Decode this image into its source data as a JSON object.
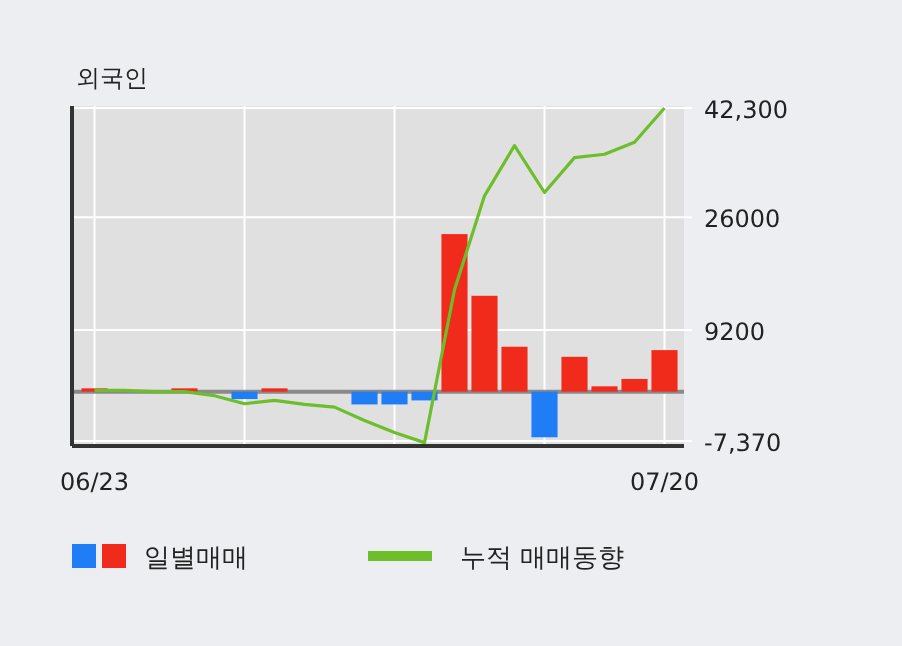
{
  "chart_data": {
    "type": "bar",
    "title": "외국인",
    "categories": [
      "06/23",
      null,
      null,
      null,
      null,
      null,
      null,
      null,
      null,
      null,
      null,
      null,
      null,
      null,
      null,
      null,
      null,
      null,
      null,
      "07/20"
    ],
    "series": [
      {
        "name": "일별매매",
        "colors": [
          "#f02b1b",
          null,
          null,
          "#f02b1b",
          null,
          "#1f7ef5",
          "#f02b1b",
          null,
          null,
          "#1f7ef5",
          "#1f7ef5",
          "#1f7ef5",
          "#f02b1b",
          "#f02b1b",
          "#f02b1b",
          "#1f7ef5",
          "#f02b1b",
          "#f02b1b",
          "#f02b1b",
          "#f02b1b"
        ],
        "values": [
          500,
          null,
          null,
          500,
          null,
          -1100,
          500,
          null,
          null,
          -1900,
          -1900,
          -1300,
          23500,
          14300,
          6700,
          -6800,
          5200,
          800,
          1900,
          6200
        ]
      },
      {
        "name": "누적 매매동향",
        "type": "line",
        "color": "#6cbf2a",
        "values": [
          200,
          200,
          0,
          0,
          -600,
          -1800,
          -1300,
          -1900,
          -2300,
          -4300,
          -6100,
          -7600,
          15200,
          29200,
          36700,
          29700,
          34900,
          35400,
          37200,
          42300
        ]
      }
    ],
    "ylim": [
      -8100,
      42600
    ],
    "yticks": [
      {
        "value": 42300,
        "label": "42,300"
      },
      26000,
      9200,
      {
        "value": -7370,
        "label": "-7,370"
      }
    ],
    "grid": true,
    "legend": "bottom"
  }
}
